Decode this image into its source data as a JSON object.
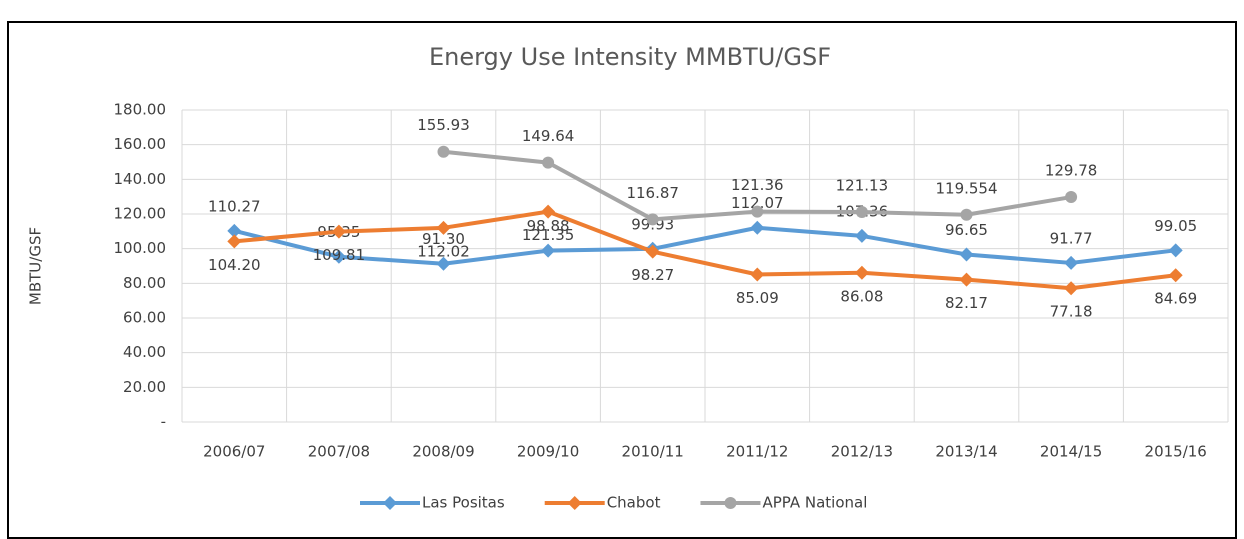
{
  "chart_data": {
    "type": "line",
    "title": "Energy Use Intensity  MMBTU/GSF",
    "y_label": "MBTU/GSF",
    "categories": [
      "2006/07",
      "2007/08",
      "2008/09",
      "2009/10",
      "2010/11",
      "2011/12",
      "2012/13",
      "2013/14",
      "2014/15",
      "2015/16"
    ],
    "series": [
      {
        "name": "Las Positas",
        "color": "#5b9bd5",
        "marker": "diamond",
        "values": [
          110.27,
          95.35,
          91.3,
          98.88,
          99.93,
          112.07,
          107.36,
          96.65,
          91.77,
          99.05
        ],
        "value_labels": [
          "110.27",
          "95.35",
          "91.30",
          "98.88",
          "99.93",
          "112.07",
          "107.36",
          "96.65",
          "91.77",
          "99.05"
        ]
      },
      {
        "name": "Chabot",
        "color": "#ed7d31",
        "marker": "diamond",
        "values": [
          104.2,
          109.81,
          112.02,
          121.35,
          98.27,
          85.09,
          86.08,
          82.17,
          77.18,
          84.69
        ],
        "value_labels": [
          "104.20",
          "109.81",
          "112.02",
          "121.35",
          "98.27",
          "85.09",
          "86.08",
          "82.17",
          "77.18",
          "84.69"
        ]
      },
      {
        "name": "APPA National",
        "color": "#a5a5a5",
        "marker": "circle",
        "values": [
          null,
          null,
          155.93,
          149.64,
          116.87,
          121.36,
          121.13,
          119.554,
          129.78,
          null
        ],
        "value_labels": [
          null,
          null,
          "155.93",
          "149.64",
          "116.87",
          "121.36",
          "121.13",
          "119.554",
          "129.78",
          null
        ]
      }
    ],
    "ylim": [
      0,
      180
    ],
    "yticks": [
      {
        "value": 0,
        "label": "-"
      },
      {
        "value": 20,
        "label": "20.00"
      },
      {
        "value": 40,
        "label": "40.00"
      },
      {
        "value": 60,
        "label": "60.00"
      },
      {
        "value": 80,
        "label": "80.00"
      },
      {
        "value": 100,
        "label": "100.00"
      },
      {
        "value": 120,
        "label": "120.00"
      },
      {
        "value": 140,
        "label": "140.00"
      },
      {
        "value": 160,
        "label": "160.00"
      },
      {
        "value": 180,
        "label": "180.00"
      }
    ],
    "grid": true,
    "legend": "bottom"
  }
}
